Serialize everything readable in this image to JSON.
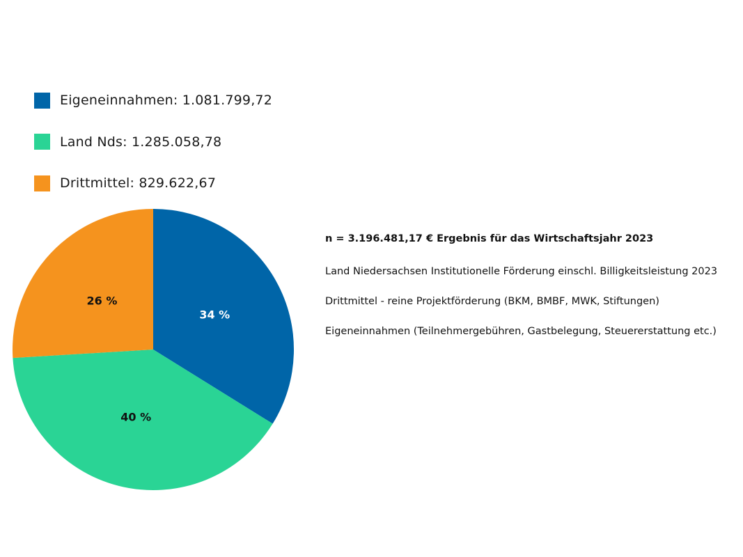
{
  "chart_data": {
    "type": "pie",
    "title": "",
    "legend_position": "top-left",
    "series": [
      {
        "name": "Eigeneinnahmen: 1.081.799,72",
        "value": 1081799.72,
        "percent_label": "34 %",
        "color": "#0065a8",
        "label_color": "#ffffff"
      },
      {
        "name": "Land Nds: 1.285.058,78",
        "value": 1285058.78,
        "percent_label": "40 %",
        "color": "#2ad495",
        "label_color": "#111111"
      },
      {
        "name": "Drittmittel: 829.622,67",
        "value": 829622.67,
        "percent_label": "26 %",
        "color": "#f5931e",
        "label_color": "#111111"
      }
    ]
  },
  "notes": {
    "total": "n = 3.196.481,17 € Ergebnis für das Wirtschaftsjahr 2023",
    "land": "Land Niedersachsen Institutionelle Förderung einschl. Billigkeitsleistung 2023",
    "drittmittel": "Drittmittel - reine Projektförderung (BKM, BMBF, MWK, Stiftungen)",
    "eigen": "Eigeneinnahmen (Teilnehmergebühren, Gastbelegung, Steuererstattung etc.)"
  }
}
